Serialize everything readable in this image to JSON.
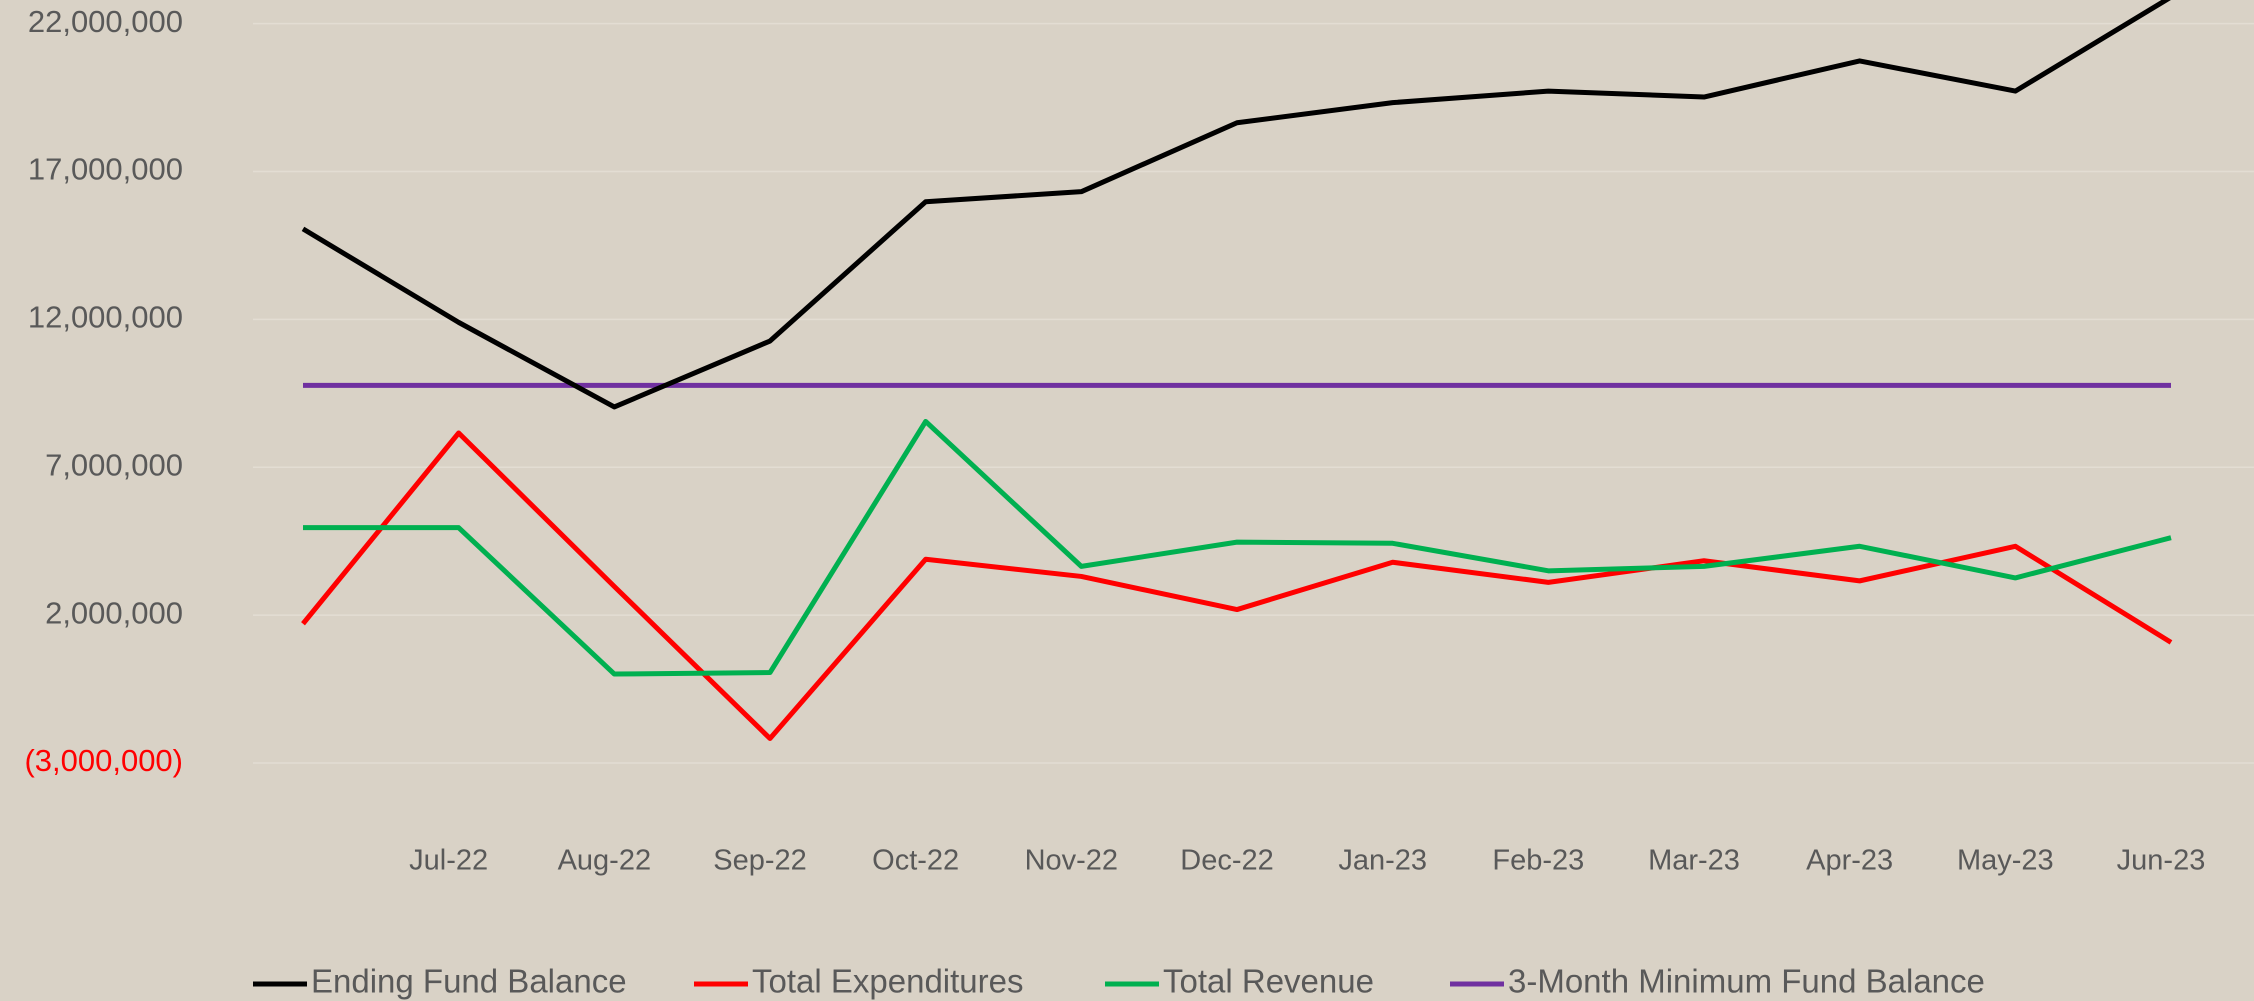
{
  "chart_data": {
    "type": "line",
    "categories": [
      null,
      "Jul-22",
      "Aug-22",
      "Sep-22",
      "Oct-22",
      "Nov-22",
      "Dec-22",
      "Jan-23",
      "Feb-23",
      "Mar-23",
      "Apr-23",
      "May-23",
      "Jun-23"
    ],
    "series": [
      {
        "name": "Ending Fund Balance",
        "color": "#000000",
        "values": [
          15060000,
          11900000,
          9040000,
          11270000,
          15980000,
          16320000,
          18650000,
          19330000,
          19720000,
          19520000,
          20740000,
          19720000,
          22900000
        ]
      },
      {
        "name": "Total Expenditures",
        "color": "#ff0000",
        "values": [
          1710000,
          8160000,
          2970000,
          -2170000,
          3890000,
          3310000,
          2190000,
          3790000,
          3110000,
          3840000,
          3160000,
          4330000,
          1080000
        ]
      },
      {
        "name": "Total Revenue",
        "color": "#00b050",
        "values": [
          4960000,
          4960000,
          10000,
          60000,
          8550000,
          3650000,
          4470000,
          4430000,
          3500000,
          3650000,
          4330000,
          3260000,
          4620000
        ]
      },
      {
        "name": "3-Month Minimum Fund Balance",
        "color": "#7030a0",
        "values": [
          9770000,
          9770000,
          9770000,
          9770000,
          9770000,
          9770000,
          9770000,
          9770000,
          9770000,
          9770000,
          9770000,
          9770000,
          9770000
        ]
      }
    ],
    "ylim": [
      -5500000,
      22800000
    ],
    "yticks": [
      {
        "value": -3000000,
        "label": "(3,000,000)"
      },
      {
        "value": 2000000,
        "label": "2,000,000"
      },
      {
        "value": 7000000,
        "label": "7,000,000"
      },
      {
        "value": 12000000,
        "label": "12,000,000"
      },
      {
        "value": 17000000,
        "label": "17,000,000"
      },
      {
        "value": 22000000,
        "label": "22,000,000"
      }
    ],
    "grid": true,
    "legend": "bottom"
  }
}
